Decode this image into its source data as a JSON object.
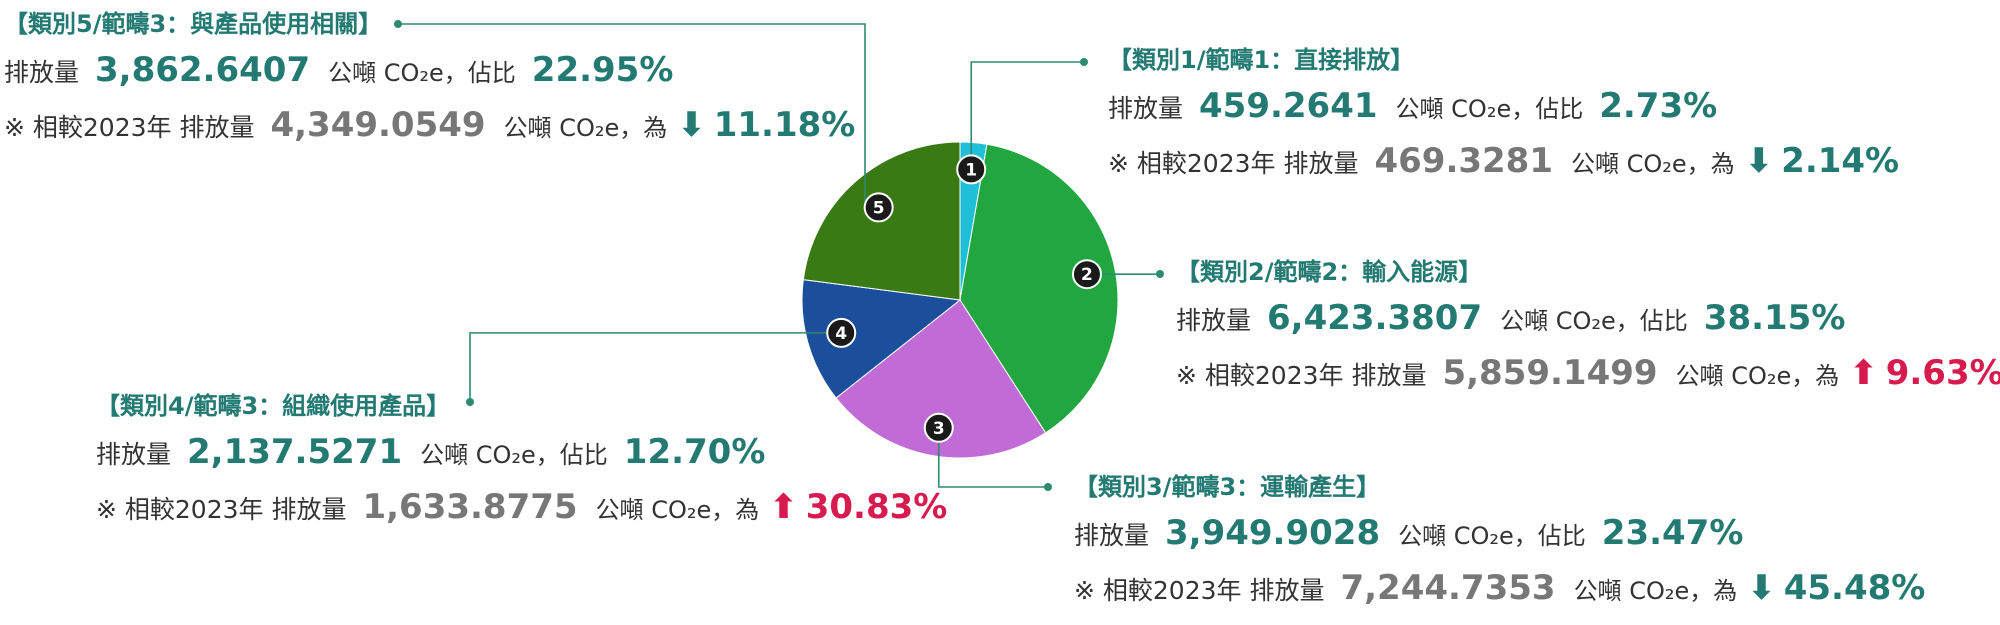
{
  "colors": {
    "accent_green": "#237a72",
    "increase_red": "#d81b4e",
    "muted_gray": "#777777",
    "leader_line": "#2e8b6f"
  },
  "labels": {
    "emission": "排放量",
    "unit": "公噸 CO₂e，佔比",
    "compare": "※ 相較2023年 排放量",
    "unit_compare": "公噸 CO₂e，為"
  },
  "chart_data": {
    "type": "pie",
    "slices": [
      {
        "id": 1,
        "label": "【類別1/範疇1：直接排放】",
        "value": 459.2641,
        "share": "2.73%",
        "prev": "469.3281",
        "change": "2.14%",
        "direction": "down",
        "color": "#1fbfd8"
      },
      {
        "id": 2,
        "label": "【類別2/範疇2：輸入能源】",
        "value": 6423.3807,
        "share": "38.15%",
        "prev": "5,859.1499",
        "change": "9.63%",
        "direction": "up",
        "color": "#22a63f"
      },
      {
        "id": 3,
        "label": "【類別3/範疇3：運輸產生】",
        "value": 3949.9028,
        "share": "23.47%",
        "prev": "7,244.7353",
        "change": "45.48%",
        "direction": "down",
        "color": "#c06bd6"
      },
      {
        "id": 4,
        "label": "【類別4/範疇3：組織使用產品】",
        "value": 2137.5271,
        "share": "12.70%",
        "prev": "1,633.8775",
        "change": "30.83%",
        "direction": "up",
        "color": "#1b4f9c"
      },
      {
        "id": 5,
        "label": "【類別5/範疇3：與產品使用相關】",
        "value": 3862.6407,
        "share": "22.95%",
        "prev": "4,349.0549",
        "change": "11.18%",
        "direction": "down",
        "color": "#3a7a14"
      }
    ],
    "value_display": [
      "459.2641",
      "6,423.3807",
      "3,949.9028",
      "2,137.5271",
      "3,862.6407"
    ]
  }
}
